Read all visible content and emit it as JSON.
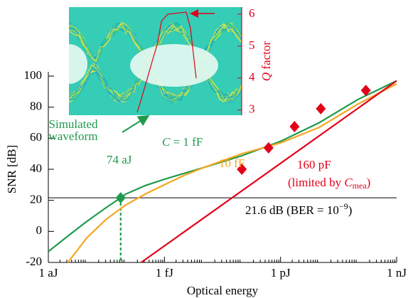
{
  "chart_data": [
    {
      "type": "line",
      "xlabel": "Optical energy",
      "ylabel": "SNR [dB]",
      "xscale": "log",
      "xlim": [
        1e-18,
        1e-09
      ],
      "xticks": [
        {
          "value": 1e-18,
          "label": "1 aJ"
        },
        {
          "value": 1e-15,
          "label": "1 fJ"
        },
        {
          "value": 1e-12,
          "label": "1 pJ"
        },
        {
          "value": 1e-09,
          "label": "1 nJ"
        }
      ],
      "ylim": [
        -20,
        100
      ],
      "yticks": [
        -20,
        0,
        20,
        40,
        60,
        80,
        100
      ],
      "series": [
        {
          "color": "#1f9a4b",
          "line": true,
          "x": [
            1e-18,
            3.2e-18,
            1e-17,
            3.2e-17,
            7.4e-17,
            1e-16,
            3.2e-16,
            1e-15,
            1e-14,
            1e-13,
            1e-12,
            1e-11,
            1e-10,
            3.2e-10,
            1e-09
          ],
          "values": [
            -13,
            -3,
            6.5,
            15.5,
            21.6,
            24,
            29.5,
            33.6,
            41,
            48.7,
            58,
            70,
            85,
            91,
            97
          ]
        },
        {
          "color": "#f5a623",
          "line": true,
          "x": [
            3.2e-18,
            1e-17,
            3.2e-17,
            1e-16,
            3.2e-16,
            1e-15,
            3.2e-15,
            1e-14,
            1e-13,
            1e-12,
            1e-11,
            1e-10,
            1e-09
          ],
          "values": [
            -20,
            -4,
            8,
            17,
            24,
            30,
            36,
            41,
            50,
            57,
            67,
            82,
            95
          ]
        },
        {
          "color": "#e2001a",
          "line": true,
          "x": [
            2.5e-16,
            1e-09
          ],
          "values": [
            -20,
            97
          ]
        },
        {
          "color": "#e2001a",
          "line": false,
          "marker": "diamond",
          "x": [
            1e-13,
            4.9e-13,
            2.3e-12,
            1.1e-11,
            1.6e-10
          ],
          "values": [
            40,
            53.8,
            67.5,
            79,
            90.8
          ]
        }
      ],
      "threshold": {
        "value": 21.6,
        "energy": 7.4e-17,
        "color": "#1f9a4b"
      },
      "annotations": {
        "sim": [
          "Simulated",
          "waveform"
        ],
        "energy": "74 aJ",
        "c1": [
          "C",
          " = 1 fF"
        ],
        "c10": "10 fF",
        "c160": "160 pF",
        "limited": [
          "(limited by ",
          "C",
          "mea",
          ")"
        ],
        "ber": [
          "21.6 dB (BER = 10",
          "−9",
          ")"
        ]
      }
    },
    {
      "type": "eye-diagram",
      "ylabel": [
        "Q",
        " factor"
      ],
      "ylim": [
        2.84,
        6.22
      ],
      "yticks": [
        3,
        4,
        5,
        6
      ],
      "color": "#e2001a"
    }
  ]
}
